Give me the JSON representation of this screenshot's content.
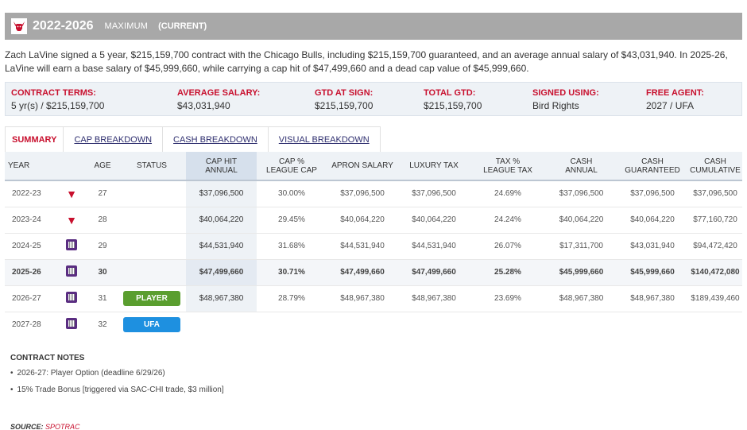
{
  "header": {
    "years": "2022-2026",
    "type": "MAXIMUM",
    "current": "(CURRENT)"
  },
  "description": "Zach LaVine signed a 5 year, $215,159,700 contract with the Chicago Bulls, including $215,159,700 guaranteed, and an average annual salary of $43,031,940. In 2025-26, LaVine will earn a base salary of $45,999,660, while carrying a cap hit of $47,499,660 and a dead cap value of $45,999,660.",
  "terms": [
    {
      "label": "CONTRACT TERMS:",
      "value": "5 yr(s) / $215,159,700"
    },
    {
      "label": "AVERAGE SALARY:",
      "value": "$43,031,940"
    },
    {
      "label": "GTD AT SIGN:",
      "value": "$215,159,700"
    },
    {
      "label": "TOTAL GTD:",
      "value": "$215,159,700"
    },
    {
      "label": "SIGNED USING:",
      "value": "Bird Rights"
    },
    {
      "label": "FREE AGENT:",
      "value": "2027 / UFA"
    }
  ],
  "tabs": [
    "SUMMARY",
    "CAP BREAKDOWN",
    "CASH BREAKDOWN",
    "VISUAL BREAKDOWN"
  ],
  "columns": {
    "year": "YEAR",
    "age": "AGE",
    "status": "STATUS",
    "cap_hit_1": "CAP HIT",
    "cap_hit_2": "ANNUAL",
    "cap_pct_1": "CAP %",
    "cap_pct_2": "LEAGUE CAP",
    "apron": "APRON SALARY",
    "luxury": "LUXURY TAX",
    "tax_pct_1": "TAX %",
    "tax_pct_2": "LEAGUE TAX",
    "cash_annual_1": "CASH",
    "cash_annual_2": "ANNUAL",
    "cash_gtd_1": "CASH",
    "cash_gtd_2": "GUARANTEED",
    "cash_cum_1": "CASH",
    "cash_cum_2": "CUMULATIVE"
  },
  "rows": [
    {
      "year": "2022-23",
      "team_icon": "bulls-icon",
      "age": "27",
      "status": "",
      "cap_hit": "$37,096,500",
      "cap_pct": "30.00%",
      "apron": "$37,096,500",
      "luxury": "$37,096,500",
      "tax_pct": "24.69%",
      "cash_annual": "$37,096,500",
      "cash_gtd": "$37,096,500",
      "cash_cum": "$37,096,500"
    },
    {
      "year": "2023-24",
      "team_icon": "bulls-icon",
      "age": "28",
      "status": "",
      "cap_hit": "$40,064,220",
      "cap_pct": "29.45%",
      "apron": "$40,064,220",
      "luxury": "$40,064,220",
      "tax_pct": "24.24%",
      "cash_annual": "$40,064,220",
      "cash_gtd": "$40,064,220",
      "cash_cum": "$77,160,720"
    },
    {
      "year": "2024-25",
      "team_icon": "kings-icon",
      "age": "29",
      "status": "",
      "cap_hit": "$44,531,940",
      "cap_pct": "31.68%",
      "apron": "$44,531,940",
      "luxury": "$44,531,940",
      "tax_pct": "26.07%",
      "cash_annual": "$17,311,700",
      "cash_gtd": "$43,031,940",
      "cash_cum": "$94,472,420"
    },
    {
      "year": "2025-26",
      "team_icon": "kings-icon",
      "age": "30",
      "status": "",
      "cap_hit": "$47,499,660",
      "cap_pct": "30.71%",
      "apron": "$47,499,660",
      "luxury": "$47,499,660",
      "tax_pct": "25.28%",
      "cash_annual": "$45,999,660",
      "cash_gtd": "$45,999,660",
      "cash_cum": "$140,472,080"
    },
    {
      "year": "2026-27",
      "team_icon": "kings-icon",
      "age": "31",
      "status": "PLAYER",
      "cap_hit": "$48,967,380",
      "cap_pct": "28.79%",
      "apron": "$48,967,380",
      "luxury": "$48,967,380",
      "tax_pct": "23.69%",
      "cash_annual": "$48,967,380",
      "cash_gtd": "$48,967,380",
      "cash_cum": "$189,439,460"
    },
    {
      "year": "2027-28",
      "team_icon": "kings-icon",
      "age": "32",
      "status": "UFA",
      "cap_hit": "",
      "cap_pct": "",
      "apron": "",
      "luxury": "",
      "tax_pct": "",
      "cash_annual": "",
      "cash_gtd": "",
      "cash_cum": ""
    }
  ],
  "notes": {
    "title": "CONTRACT NOTES",
    "items": [
      "2026-27: Player Option (deadline 6/29/26)",
      "15% Trade Bonus [triggered via SAC-CHI trade, $3 million]"
    ]
  },
  "source": {
    "label": "SOURCE:",
    "link": "SPOTRAC"
  },
  "colors": {
    "accent_red": "#c8102e",
    "player_badge": "#5a9e2f",
    "ufa_badge": "#1e90e0",
    "header_bg": "#a8a8a8"
  }
}
